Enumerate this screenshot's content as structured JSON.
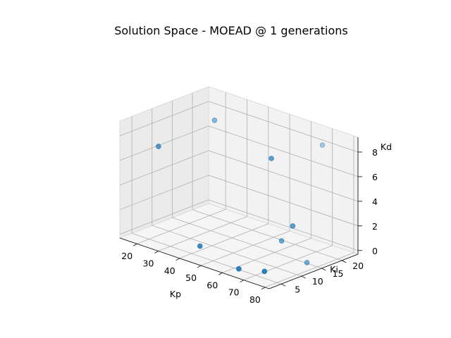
{
  "chart_data": {
    "type": "scatter",
    "projection": "3d",
    "title": "Solution Space - MOEAD @ 1 generations",
    "xlabel": "Kp",
    "ylabel": "Ki",
    "zlabel": "Kd",
    "x_ticks": [
      20,
      30,
      40,
      50,
      60,
      70,
      80
    ],
    "y_ticks": [
      5,
      10,
      15,
      20
    ],
    "z_ticks": [
      0,
      2,
      4,
      6,
      8
    ],
    "xlim": [
      12,
      82
    ],
    "ylim": [
      2,
      24
    ],
    "zlim": [
      -0.3,
      9.2
    ],
    "grid": true,
    "marker_color": "#1f77b4",
    "points": [
      {
        "x": 66,
        "y": 11,
        "z": 8.2
      },
      {
        "x": 28,
        "y": 17,
        "z": 8.3
      },
      {
        "x": 71,
        "y": 21,
        "z": 8.3
      },
      {
        "x": 15,
        "y": 10,
        "z": 6.3
      },
      {
        "x": 76,
        "y": 11,
        "z": 3.3
      },
      {
        "x": 67,
        "y": 13,
        "z": 1.3
      },
      {
        "x": 77,
        "y": 14,
        "z": 0.0
      },
      {
        "x": 42,
        "y": 6,
        "z": 0.3
      },
      {
        "x": 64,
        "y": 4,
        "z": 0.0
      },
      {
        "x": 76,
        "y": 4,
        "z": 0.5
      }
    ]
  }
}
